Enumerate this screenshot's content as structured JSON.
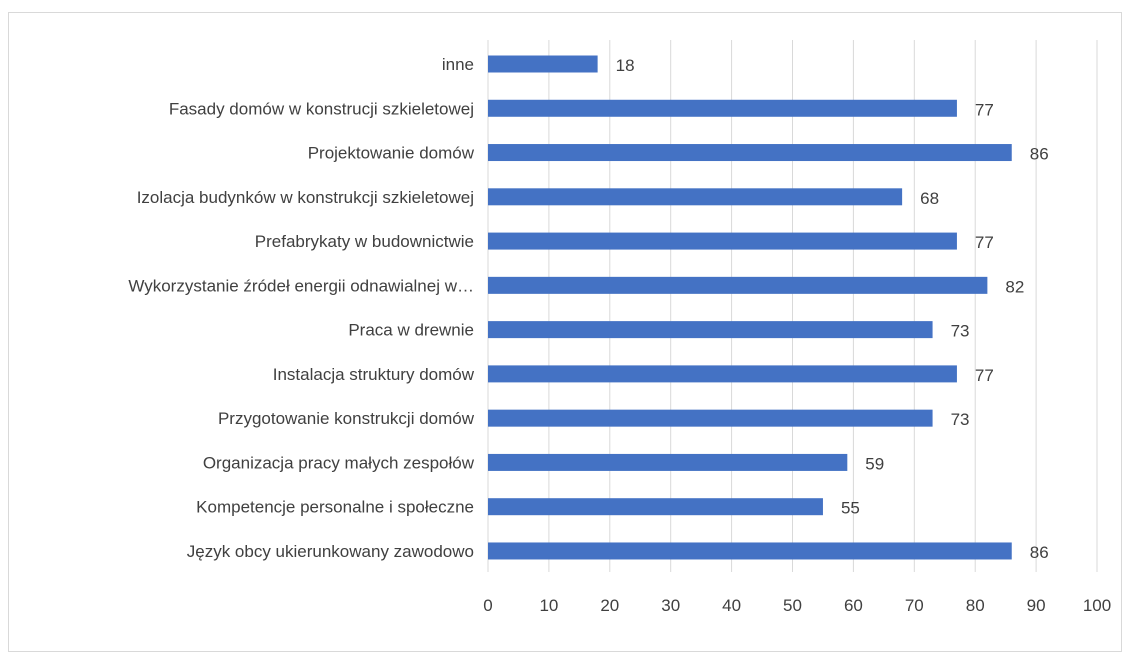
{
  "chart_data": {
    "type": "bar",
    "orientation": "horizontal",
    "categories": [
      "inne",
      "Fasady domów w konstrucji szkieletowej",
      "Projektowanie domów",
      "Izolacja budynków w konstrukcji szkieletowej",
      "Prefabrykaty w budownictwie",
      "Wykorzystanie źródeł energii odnawialnej w…",
      "Praca w drewnie",
      "Instalacja struktury domów",
      "Przygotowanie konstrukcji domów",
      "Organizacja pracy małych zespołów",
      "Kompetencje personalne i społeczne",
      "Język obcy ukierunkowany zawodowo"
    ],
    "values": [
      18,
      77,
      86,
      68,
      77,
      82,
      73,
      77,
      73,
      59,
      55,
      86
    ],
    "data_labels": [
      "18",
      "77",
      "86",
      "68",
      "77",
      "82",
      "73",
      "77",
      "73",
      "59",
      "55",
      "86"
    ],
    "xlim": [
      0,
      100
    ],
    "x_ticks": [
      "0",
      "10",
      "20",
      "30",
      "40",
      "50",
      "60",
      "70",
      "80",
      "90",
      "100"
    ],
    "grid": "vertical",
    "legend": "none",
    "bar_color": "#4472c4",
    "grid_color": "#d9d9d9"
  }
}
